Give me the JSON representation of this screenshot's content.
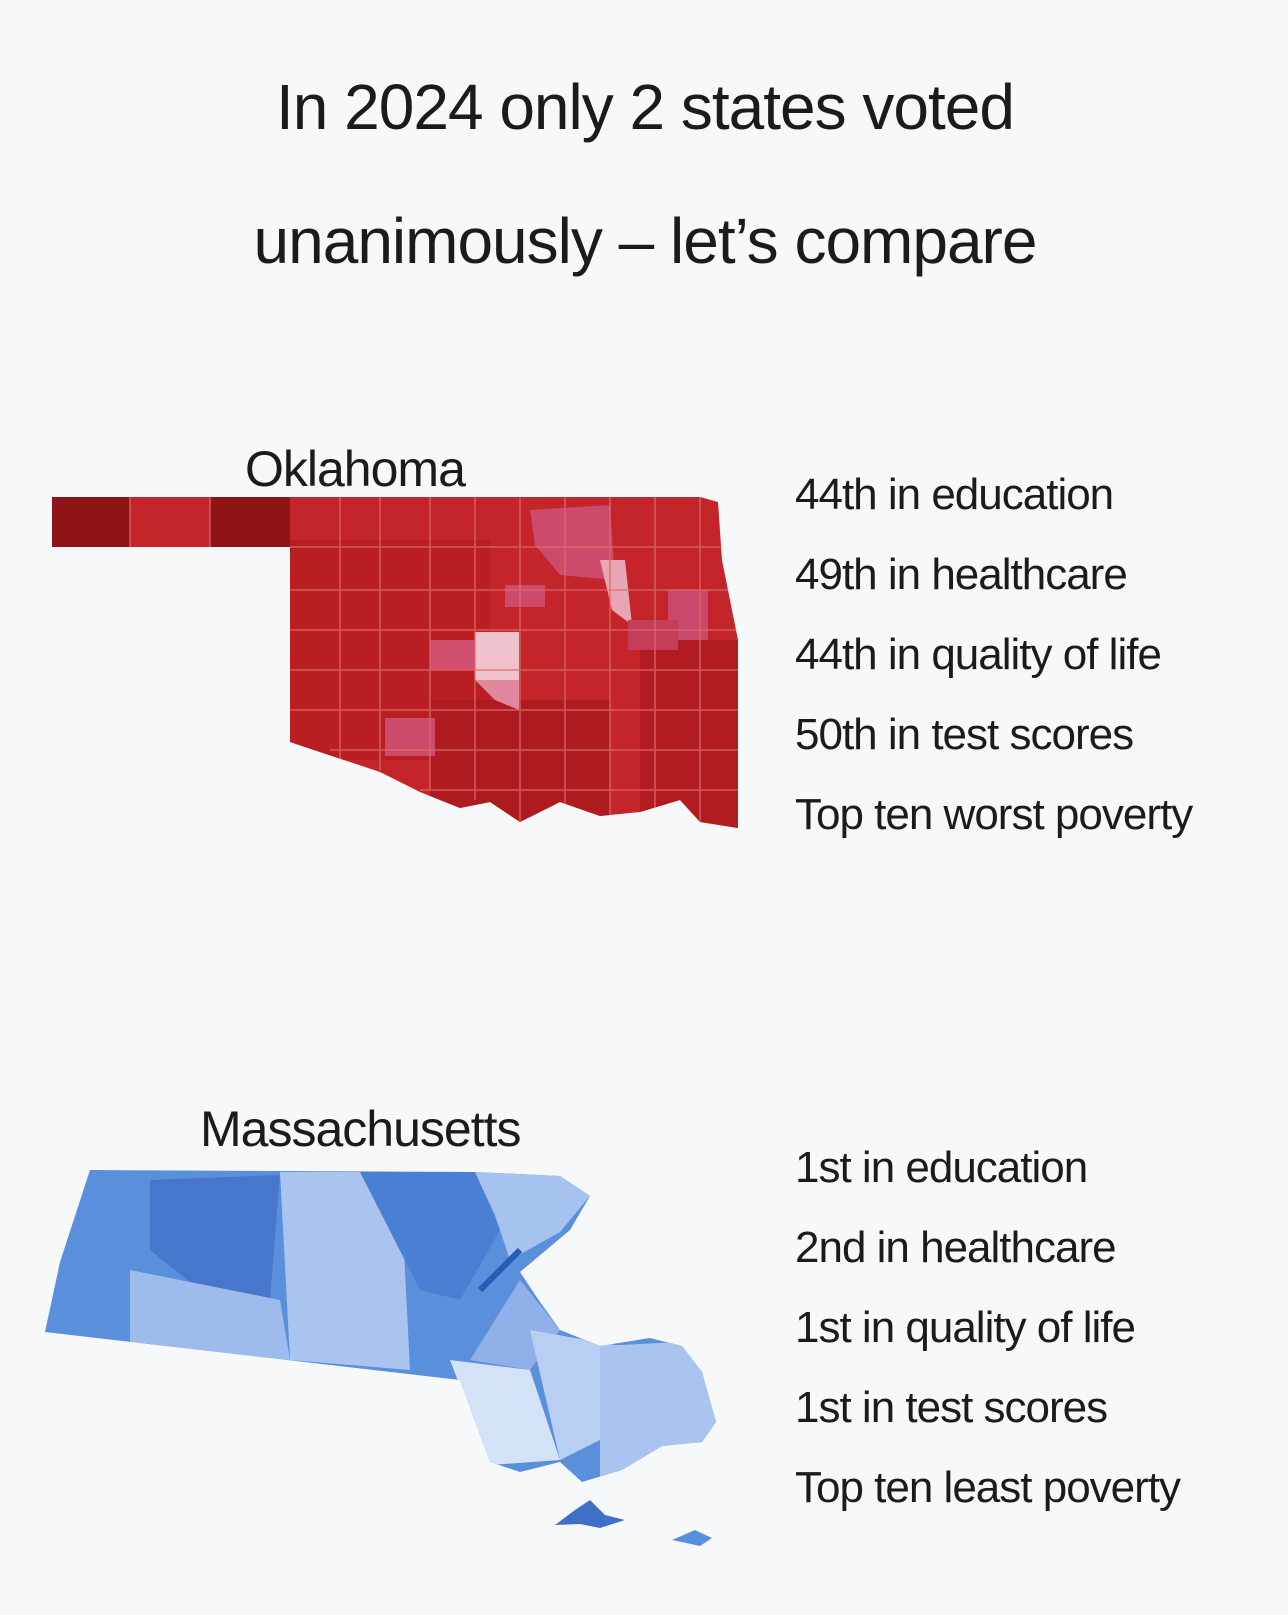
{
  "title": "In 2024 only 2 states voted unanimously – let’s compare",
  "states": [
    {
      "name": "Oklahoma",
      "facts": [
        "44th in education",
        "49th in healthcare",
        "44th in quality of life",
        "50th in test scores",
        "Top ten worst poverty"
      ]
    },
    {
      "name": "Massachusetts",
      "facts": [
        "1st in education",
        "2nd in healthcare",
        "1st in quality of life",
        "1st in test scores",
        "Top ten least poverty"
      ]
    }
  ]
}
